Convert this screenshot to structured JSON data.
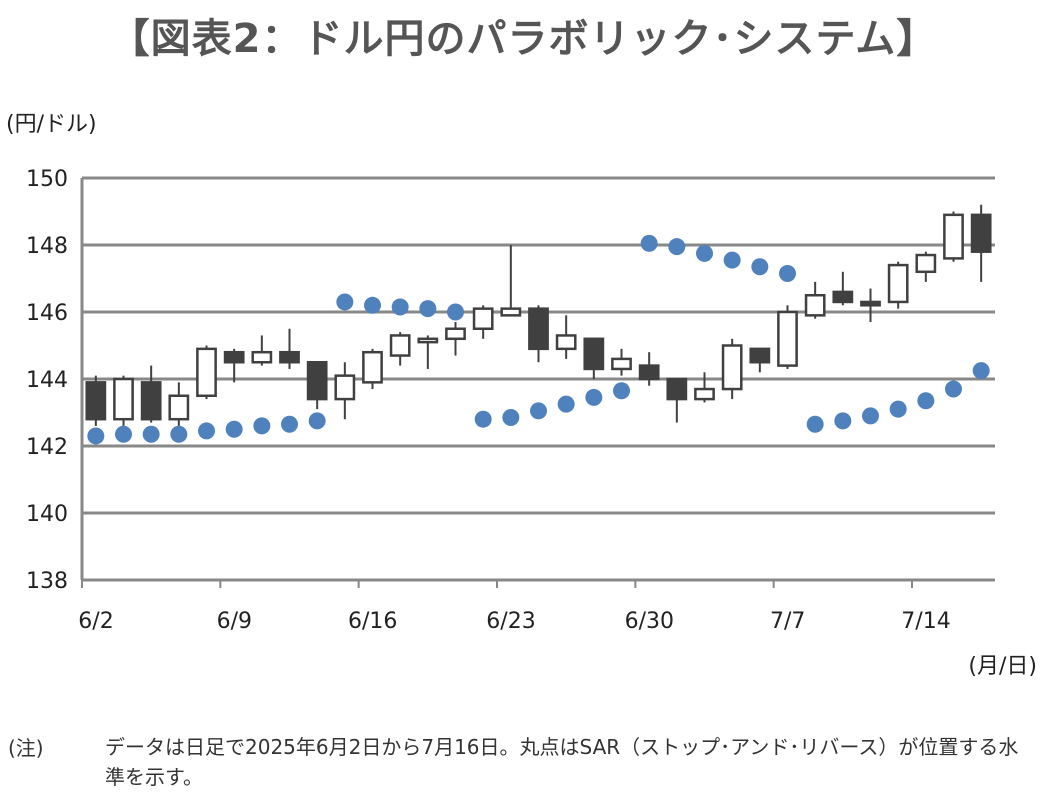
{
  "title": "【図表2：ドル円のパラボリック･システム】",
  "y_unit_label": "(円/ドル)",
  "x_unit_label": "(月/日)",
  "note": {
    "label": "(注)",
    "text": "データは日足で2025年6月2日から7月16日。丸点はSAR（ストップ･アンド･リバース）が位置する水準を示す。"
  },
  "colors": {
    "grid": "#888888",
    "axis": "#888888",
    "sar": "#4f81bd",
    "bull_fill": "#ffffff",
    "bear_fill": "#404040",
    "candle_stroke": "#404040"
  },
  "chart_data": {
    "type": "candlestick",
    "ylim": [
      138,
      150
    ],
    "yticks": [
      138,
      140,
      142,
      144,
      146,
      148,
      150
    ],
    "xtick_labels": [
      "6/2",
      "6/9",
      "6/16",
      "6/23",
      "6/30",
      "7/7",
      "7/14"
    ],
    "xtick_indices": [
      0,
      5,
      10,
      15,
      20,
      25,
      30
    ],
    "grid": true,
    "series": [
      {
        "name": "ドル円",
        "candles": [
          {
            "date": "6/2",
            "open": 143.9,
            "high": 144.1,
            "low": 142.6,
            "close": 142.8
          },
          {
            "date": "6/3",
            "open": 142.8,
            "high": 144.1,
            "low": 142.6,
            "close": 144.0
          },
          {
            "date": "6/4",
            "open": 143.9,
            "high": 144.4,
            "low": 142.7,
            "close": 142.8
          },
          {
            "date": "6/5",
            "open": 142.8,
            "high": 143.9,
            "low": 142.6,
            "close": 143.5
          },
          {
            "date": "6/6",
            "open": 143.5,
            "high": 145.0,
            "low": 143.4,
            "close": 144.9
          },
          {
            "date": "6/9",
            "open": 144.8,
            "high": 144.9,
            "low": 143.9,
            "close": 144.5
          },
          {
            "date": "6/10",
            "open": 144.5,
            "high": 145.3,
            "low": 144.4,
            "close": 144.8
          },
          {
            "date": "6/11",
            "open": 144.8,
            "high": 145.5,
            "low": 144.3,
            "close": 144.5
          },
          {
            "date": "6/12",
            "open": 144.5,
            "high": 144.5,
            "low": 143.1,
            "close": 143.4
          },
          {
            "date": "6/13",
            "open": 143.4,
            "high": 144.5,
            "low": 142.8,
            "close": 144.1
          },
          {
            "date": "6/16",
            "open": 143.9,
            "high": 144.9,
            "low": 143.7,
            "close": 144.8
          },
          {
            "date": "6/17",
            "open": 144.7,
            "high": 145.4,
            "low": 144.4,
            "close": 145.3
          },
          {
            "date": "6/18",
            "open": 145.1,
            "high": 145.3,
            "low": 144.3,
            "close": 145.2
          },
          {
            "date": "6/19",
            "open": 145.2,
            "high": 145.7,
            "low": 144.7,
            "close": 145.5
          },
          {
            "date": "6/20",
            "open": 145.5,
            "high": 146.2,
            "low": 145.2,
            "close": 146.1
          },
          {
            "date": "6/23",
            "open": 145.9,
            "high": 148.0,
            "low": 145.9,
            "close": 146.1
          },
          {
            "date": "6/24",
            "open": 146.1,
            "high": 146.2,
            "low": 144.5,
            "close": 144.9
          },
          {
            "date": "6/25",
            "open": 144.9,
            "high": 145.9,
            "low": 144.6,
            "close": 145.3
          },
          {
            "date": "6/26",
            "open": 145.2,
            "high": 145.2,
            "low": 144.0,
            "close": 144.3
          },
          {
            "date": "6/27",
            "open": 144.3,
            "high": 144.9,
            "low": 144.1,
            "close": 144.6
          },
          {
            "date": "6/30",
            "open": 144.4,
            "high": 144.8,
            "low": 143.8,
            "close": 144.0
          },
          {
            "date": "7/1",
            "open": 144.0,
            "high": 144.0,
            "low": 142.7,
            "close": 143.4
          },
          {
            "date": "7/2",
            "open": 143.4,
            "high": 144.2,
            "low": 143.3,
            "close": 143.7
          },
          {
            "date": "7/3",
            "open": 143.7,
            "high": 145.2,
            "low": 143.4,
            "close": 145.0
          },
          {
            "date": "7/4",
            "open": 144.9,
            "high": 144.9,
            "low": 144.2,
            "close": 144.5
          },
          {
            "date": "7/7",
            "open": 144.4,
            "high": 146.2,
            "low": 144.3,
            "close": 146.0
          },
          {
            "date": "7/8",
            "open": 145.9,
            "high": 146.9,
            "low": 145.8,
            "close": 146.5
          },
          {
            "date": "7/9",
            "open": 146.6,
            "high": 147.2,
            "low": 146.2,
            "close": 146.3
          },
          {
            "date": "7/10",
            "open": 146.3,
            "high": 146.7,
            "low": 145.7,
            "close": 146.2
          },
          {
            "date": "7/11",
            "open": 146.3,
            "high": 147.5,
            "low": 146.1,
            "close": 147.4
          },
          {
            "date": "7/14",
            "open": 147.2,
            "high": 147.8,
            "low": 146.9,
            "close": 147.7
          },
          {
            "date": "7/15",
            "open": 147.6,
            "high": 149.0,
            "low": 147.5,
            "close": 148.9
          },
          {
            "date": "7/16",
            "open": 148.9,
            "high": 149.2,
            "low": 146.9,
            "close": 147.8
          }
        ]
      },
      {
        "name": "SAR",
        "values": [
          142.3,
          142.35,
          142.35,
          142.35,
          142.45,
          142.5,
          142.6,
          142.65,
          142.75,
          146.3,
          146.2,
          146.15,
          146.1,
          146.0,
          142.8,
          142.85,
          143.05,
          143.25,
          143.45,
          143.65,
          148.05,
          147.95,
          147.75,
          147.55,
          147.35,
          147.15,
          142.65,
          142.75,
          142.9,
          143.1,
          143.35,
          143.7,
          144.25
        ]
      }
    ]
  }
}
